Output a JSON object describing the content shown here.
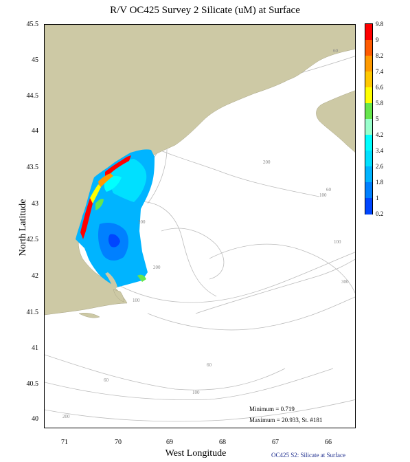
{
  "title": "R/V OC425 Survey 2 Silicate (uM) at Surface",
  "axes": {
    "x_label": "West Longitude",
    "y_label": "North Latitude",
    "x_ticks": [
      "71",
      "70",
      "69",
      "68",
      "67",
      "66"
    ],
    "y_ticks": [
      "45.5",
      "45",
      "44.5",
      "44",
      "43.5",
      "43",
      "42.5",
      "42",
      "41.5",
      "41",
      "40.5",
      "40"
    ]
  },
  "colorbar": {
    "labels": [
      "9.8",
      "9",
      "8.2",
      "7.4",
      "6.6",
      "5.8",
      "5",
      "4.2",
      "3.4",
      "2.6",
      "1.8",
      "1",
      "0.2"
    ],
    "colors": [
      "#ff0000",
      "#ff5a00",
      "#ff9a00",
      "#ffc800",
      "#ffff00",
      "#66e64c",
      "#99ffcc",
      "#00ffff",
      "#00e0ff",
      "#00b4ff",
      "#0080ff",
      "#0046ff"
    ]
  },
  "contour_labels": [
    "60",
    "60",
    "100",
    "200",
    "200",
    "200",
    "100",
    "300",
    "100",
    "60",
    "60",
    "100",
    "200"
  ],
  "stats": {
    "minimum": "Minimum = 0.719",
    "maximum": "Maximum = 20.933, St. #181"
  },
  "footer": "OC425 S2: Silicate at Surface",
  "colors": {
    "land": "#cdc9a5",
    "contour": "#bbbbbb"
  }
}
